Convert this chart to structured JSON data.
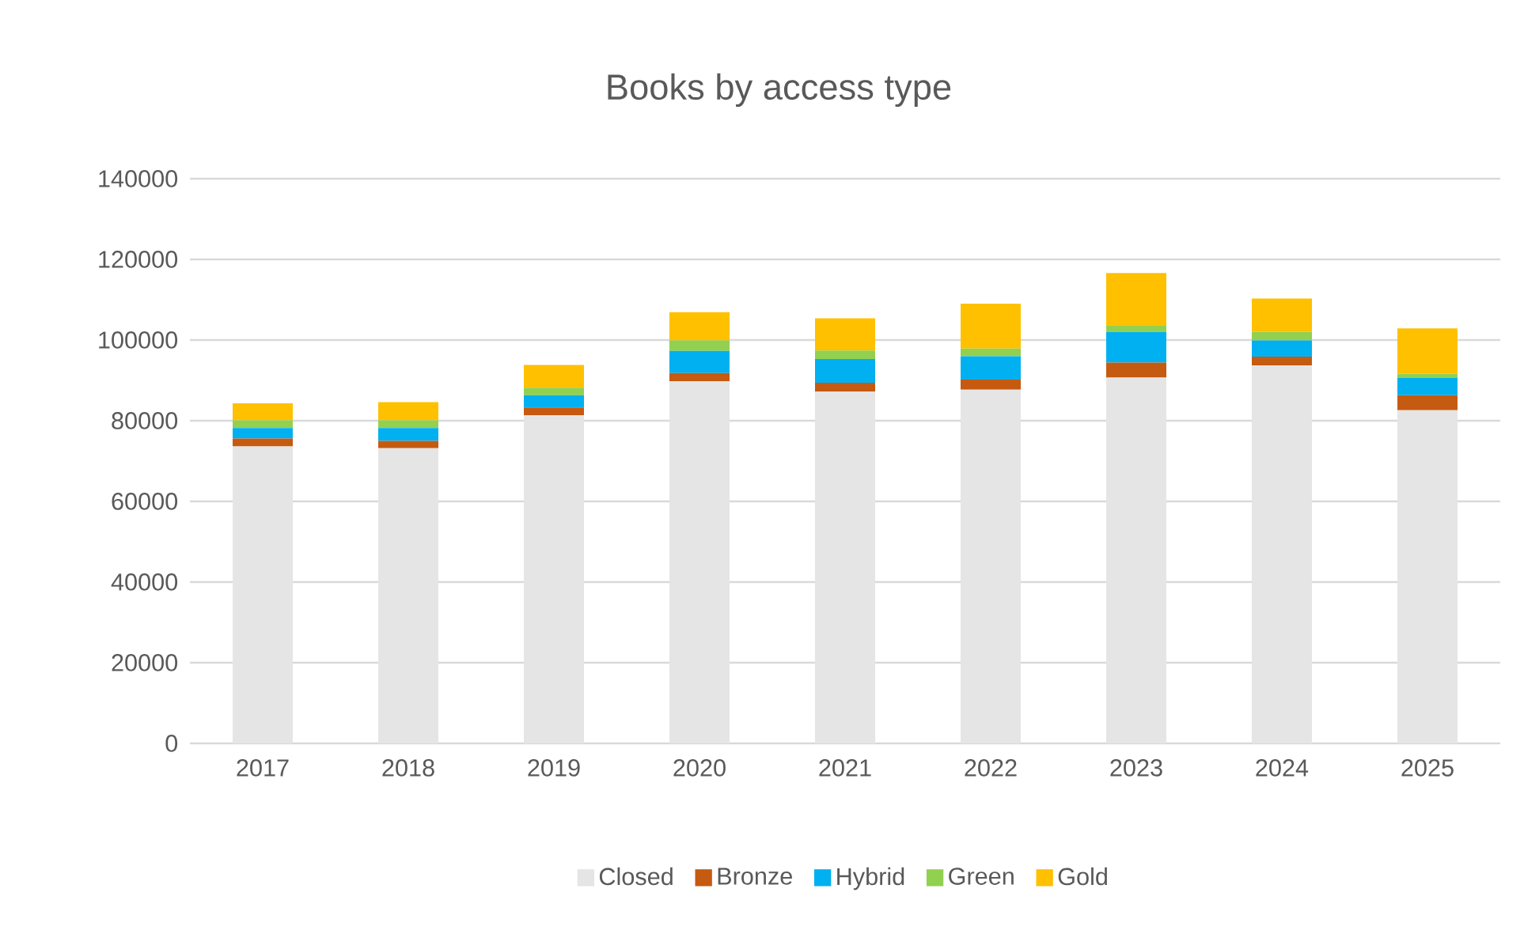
{
  "chart_data": {
    "type": "bar",
    "title": "Books by access type",
    "stacked": true,
    "categories": [
      "2017",
      "2018",
      "2019",
      "2020",
      "2021",
      "2022",
      "2023",
      "2024",
      "2025"
    ],
    "series": [
      {
        "name": "Closed",
        "color": "#e5e5e5",
        "values": [
          73600,
          73200,
          81300,
          89800,
          87200,
          87700,
          90700,
          93700,
          82600
        ]
      },
      {
        "name": "Bronze",
        "color": "#c55a11",
        "values": [
          2000,
          1800,
          2000,
          2000,
          2200,
          2500,
          3700,
          2200,
          3700
        ]
      },
      {
        "name": "Hybrid",
        "color": "#00b0f0",
        "values": [
          2600,
          3200,
          3000,
          5500,
          5900,
          5800,
          7600,
          4000,
          4400
        ]
      },
      {
        "name": "Green",
        "color": "#92d050",
        "values": [
          1900,
          1900,
          1900,
          2600,
          2100,
          1900,
          1500,
          2100,
          900
        ]
      },
      {
        "name": "Gold",
        "color": "#ffc000",
        "values": [
          4200,
          4500,
          5600,
          7000,
          8000,
          11100,
          13100,
          8300,
          11300
        ]
      }
    ],
    "ylim": [
      0,
      140000
    ],
    "yticks": [
      0,
      20000,
      40000,
      60000,
      80000,
      100000,
      120000,
      140000
    ],
    "grid": "y",
    "legend": "bottom"
  }
}
